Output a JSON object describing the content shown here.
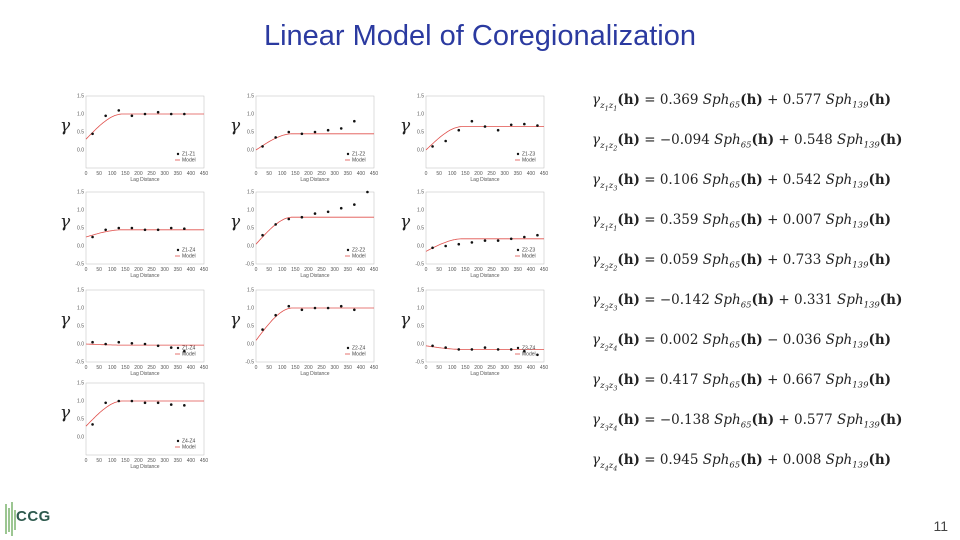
{
  "title": "Linear Model of Coregionalization",
  "page_number": "11",
  "logo_text": "CCG",
  "gamma_symbol": "γ",
  "colors": {
    "title": "#2b3aa0",
    "model": "#e0504c",
    "points": "#111111"
  },
  "chart_data": [
    {
      "type": "scatter",
      "legend": [
        "Z1-Z1",
        "Model"
      ],
      "xlabel": "Lag Distance",
      "xlim": [
        0,
        450
      ],
      "ylim": [
        -0.5,
        1.5
      ],
      "xticks": [
        0,
        50,
        100,
        150,
        200,
        250,
        300,
        350,
        400,
        450
      ],
      "yticks": [
        1.5,
        1.0,
        0.5,
        0.0
      ],
      "x": [
        25,
        75,
        125,
        175,
        225,
        275,
        325,
        375
      ],
      "y": [
        0.45,
        0.95,
        1.1,
        0.95,
        1.0,
        1.05,
        1.0,
        1.0
      ],
      "model_range": 139,
      "sill": 1.0,
      "nugget": 0.3
    },
    {
      "type": "scatter",
      "legend": [
        "Z1-Z2",
        "Model"
      ],
      "xlabel": "Lag Distance",
      "xlim": [
        0,
        450
      ],
      "ylim": [
        -0.5,
        1.5
      ],
      "xticks": [
        0,
        50,
        100,
        150,
        200,
        250,
        300,
        350,
        400,
        450
      ],
      "yticks": [
        1.5,
        1.0,
        0.5,
        0.0
      ],
      "x": [
        25,
        75,
        125,
        175,
        225,
        275,
        325,
        375
      ],
      "y": [
        0.1,
        0.35,
        0.5,
        0.45,
        0.5,
        0.55,
        0.6,
        0.8
      ],
      "model_range": 139,
      "sill": 0.45,
      "nugget": 0.0
    },
    {
      "type": "scatter",
      "legend": [
        "Z1-Z3",
        "Model"
      ],
      "xlabel": "Lag Distance",
      "xlim": [
        0,
        450
      ],
      "ylim": [
        -0.5,
        1.5
      ],
      "xticks": [
        0,
        50,
        100,
        150,
        200,
        250,
        300,
        350,
        400,
        450
      ],
      "yticks": [
        1.5,
        1.0,
        0.5,
        0.0
      ],
      "x": [
        25,
        75,
        125,
        175,
        225,
        275,
        325,
        375,
        425
      ],
      "y": [
        0.1,
        0.25,
        0.55,
        0.8,
        0.65,
        0.55,
        0.7,
        0.72,
        0.68
      ],
      "model_range": 139,
      "sill": 0.65,
      "nugget": 0.0
    },
    {
      "type": "scatter",
      "legend": [
        "Z1-Z4",
        "Model"
      ],
      "xlabel": "Lag Distance",
      "xlim": [
        0,
        450
      ],
      "ylim": [
        -0.5,
        1.5
      ],
      "xticks": [
        0,
        50,
        100,
        150,
        200,
        250,
        300,
        350,
        400,
        450
      ],
      "yticks": [
        1.5,
        1.0,
        0.5,
        0.0,
        -0.5
      ],
      "x": [
        25,
        75,
        125,
        175,
        225,
        275,
        325,
        375
      ],
      "y": [
        0.25,
        0.45,
        0.5,
        0.5,
        0.45,
        0.45,
        0.5,
        0.48
      ],
      "model_range": 139,
      "sill": 0.45,
      "nugget": 0.25
    },
    {
      "type": "scatter",
      "legend": [
        "Z2-Z2",
        "Model"
      ],
      "xlabel": "Lag Distance",
      "xlim": [
        0,
        450
      ],
      "ylim": [
        -0.5,
        1.5
      ],
      "xticks": [
        0,
        50,
        100,
        150,
        200,
        250,
        300,
        350,
        400,
        450
      ],
      "yticks": [
        1.5,
        1.0,
        0.5,
        0.0,
        -0.5
      ],
      "x": [
        25,
        75,
        125,
        175,
        225,
        275,
        325,
        375,
        425
      ],
      "y": [
        0.3,
        0.6,
        0.75,
        0.8,
        0.9,
        0.95,
        1.05,
        1.15,
        1.5
      ],
      "model_range": 139,
      "sill": 0.8,
      "nugget": 0.05
    },
    {
      "type": "scatter",
      "legend": [
        "Z2-Z3",
        "Model"
      ],
      "xlabel": "Lag Distance",
      "xlim": [
        0,
        450
      ],
      "ylim": [
        -0.5,
        1.5
      ],
      "xticks": [
        0,
        50,
        100,
        150,
        200,
        250,
        300,
        350,
        400,
        450
      ],
      "yticks": [
        1.5,
        1.0,
        0.5,
        0.0,
        -0.5
      ],
      "x": [
        25,
        75,
        125,
        175,
        225,
        275,
        325,
        375,
        425
      ],
      "y": [
        -0.05,
        0.0,
        0.05,
        0.1,
        0.15,
        0.15,
        0.2,
        0.25,
        0.3
      ],
      "model_range": 139,
      "sill": 0.2,
      "nugget": -0.15
    },
    {
      "type": "scatter",
      "legend": [
        "Z1-Z4",
        "Model"
      ],
      "xlabel": "Lag Distance",
      "xlim": [
        0,
        450
      ],
      "ylim": [
        -0.5,
        1.5
      ],
      "xticks": [
        0,
        50,
        100,
        150,
        200,
        250,
        300,
        350,
        400,
        450
      ],
      "yticks": [
        1.5,
        1.0,
        0.5,
        0.0,
        -0.5
      ],
      "x": [
        25,
        75,
        125,
        175,
        225,
        275,
        325,
        375
      ],
      "y": [
        0.05,
        0.0,
        0.05,
        0.02,
        0.0,
        -0.05,
        -0.1,
        -0.2
      ],
      "model_range": 139,
      "sill": -0.03,
      "nugget": 0.0
    },
    {
      "type": "scatter",
      "legend": [
        "Z2-Z4",
        "Model"
      ],
      "xlabel": "Lag Distance",
      "xlim": [
        0,
        450
      ],
      "ylim": [
        -0.5,
        1.5
      ],
      "xticks": [
        0,
        50,
        100,
        150,
        200,
        250,
        300,
        350,
        400,
        450
      ],
      "yticks": [
        1.5,
        1.0,
        0.5,
        0.0,
        -0.5
      ],
      "x": [
        25,
        75,
        125,
        175,
        225,
        275,
        325,
        375
      ],
      "y": [
        0.4,
        0.8,
        1.05,
        0.95,
        1.0,
        1.0,
        1.05,
        0.95
      ],
      "model_range": 139,
      "sill": 1.0,
      "nugget": 0.1
    },
    {
      "type": "scatter",
      "legend": [
        "Z3-Z4",
        "Model"
      ],
      "xlabel": "Lag Distance",
      "xlim": [
        0,
        450
      ],
      "ylim": [
        -0.5,
        1.5
      ],
      "xticks": [
        0,
        50,
        100,
        150,
        200,
        250,
        300,
        350,
        400,
        450
      ],
      "yticks": [
        1.5,
        1.0,
        0.5,
        0.0,
        -0.5
      ],
      "x": [
        25,
        75,
        125,
        175,
        225,
        275,
        325,
        375,
        425
      ],
      "y": [
        -0.05,
        -0.1,
        -0.15,
        -0.15,
        -0.1,
        -0.15,
        -0.15,
        -0.2,
        -0.3
      ],
      "model_range": 139,
      "sill": -0.15,
      "nugget": -0.05
    },
    {
      "type": "scatter",
      "legend": [
        "Z4-Z4",
        "Model"
      ],
      "xlabel": "Lag Distance",
      "xlim": [
        0,
        450
      ],
      "ylim": [
        -0.5,
        1.5
      ],
      "xticks": [
        0,
        50,
        100,
        150,
        200,
        250,
        300,
        350,
        400,
        450
      ],
      "yticks": [
        1.5,
        1.0,
        0.5,
        0.0
      ],
      "x": [
        25,
        75,
        125,
        175,
        225,
        275,
        325,
        375
      ],
      "y": [
        0.35,
        0.95,
        1.0,
        1.0,
        0.95,
        0.95,
        0.9,
        0.88
      ],
      "model_range": 139,
      "sill": 1.0,
      "nugget": 0.3
    }
  ],
  "equations": [
    {
      "i": "1",
      "j": "1",
      "sign1": "",
      "c1": "0.369",
      "sign2": "+",
      "c2": "0.577"
    },
    {
      "i": "1",
      "j": "2",
      "sign1": "−",
      "c1": "0.094",
      "sign2": "+",
      "c2": "0.548"
    },
    {
      "i": "1",
      "j": "3",
      "sign1": "",
      "c1": "0.106",
      "sign2": "+",
      "c2": "0.542"
    },
    {
      "i": "1",
      "j": "1",
      "sign1": "",
      "c1": "0.359",
      "sign2": "+",
      "c2": "0.007"
    },
    {
      "i": "2",
      "j": "2",
      "sign1": "",
      "c1": "0.059",
      "sign2": "+",
      "c2": "0.733"
    },
    {
      "i": "2",
      "j": "3",
      "sign1": "−",
      "c1": "0.142",
      "sign2": "+",
      "c2": "0.331"
    },
    {
      "i": "2",
      "j": "4",
      "sign1": "",
      "c1": "0.002",
      "sign2": "−",
      "c2": "0.036"
    },
    {
      "i": "3",
      "j": "3",
      "sign1": "",
      "c1": "0.417",
      "sign2": "+",
      "c2": "0.667"
    },
    {
      "i": "3",
      "j": "4",
      "sign1": "−",
      "c1": "0.138",
      "sign2": "+",
      "c2": "0.577"
    },
    {
      "i": "4",
      "j": "4",
      "sign1": "",
      "c1": "0.945",
      "sign2": "+",
      "c2": "0.008"
    }
  ],
  "eq_symbols": {
    "gamma": "γ",
    "z": "z",
    "h": "(h)",
    "equals": "=",
    "sph": "Sph",
    "r1": "65",
    "r2": "139"
  }
}
